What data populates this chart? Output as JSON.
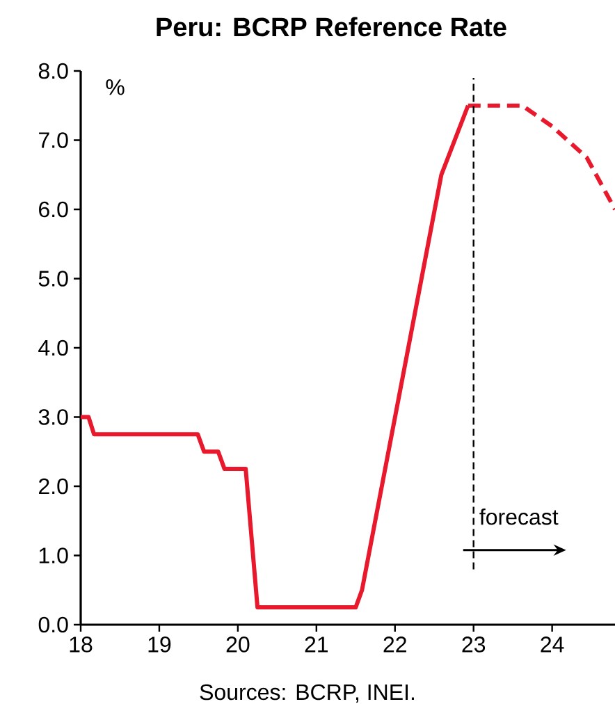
{
  "chart_data": {
    "type": "line",
    "title": "Peru: BCRP Reference Rate",
    "ylabel": "%",
    "series": [
      {
        "color": "#e8192c",
        "line_style": "solid",
        "x": [
          18.0,
          18.1,
          18.17,
          19.49,
          19.57,
          19.75,
          19.83,
          20.1,
          20.25,
          21.5,
          21.58,
          22.59,
          22.93
        ],
        "values": [
          3.0,
          3.0,
          2.75,
          2.75,
          2.5,
          2.5,
          2.25,
          2.25,
          0.25,
          0.25,
          0.5,
          6.5,
          7.5
        ]
      },
      {
        "color": "#e8192c",
        "line_style": "dashed",
        "x": [
          22.93,
          23.62,
          24.0,
          24.44,
          24.8
        ],
        "values": [
          7.5,
          7.5,
          7.2,
          6.75,
          6.0
        ]
      }
    ],
    "xlim": [
      18,
      24.8
    ],
    "xticks": [
      18,
      19,
      20,
      21,
      22,
      23,
      24
    ],
    "ylim": [
      0,
      8
    ],
    "yticks": [
      {
        "value": 0,
        "label": "0.0"
      },
      {
        "value": 1,
        "label": "1.0"
      },
      {
        "value": 2,
        "label": "2.0"
      },
      {
        "value": 3,
        "label": "3.0"
      },
      {
        "value": 4,
        "label": "4.0"
      },
      {
        "value": 5,
        "label": "5.0"
      },
      {
        "value": 6,
        "label": "6.0"
      },
      {
        "value": 7,
        "label": "7.0"
      },
      {
        "value": 8,
        "label": "8.0"
      }
    ],
    "ref_lines": [
      {
        "axis": "x",
        "value": 23,
        "color": "#000000",
        "line_style": "dashed"
      }
    ],
    "annotations": [
      "forecast",
      "Sources: BCRP, INEI."
    ],
    "grid": false,
    "marker": "none"
  }
}
